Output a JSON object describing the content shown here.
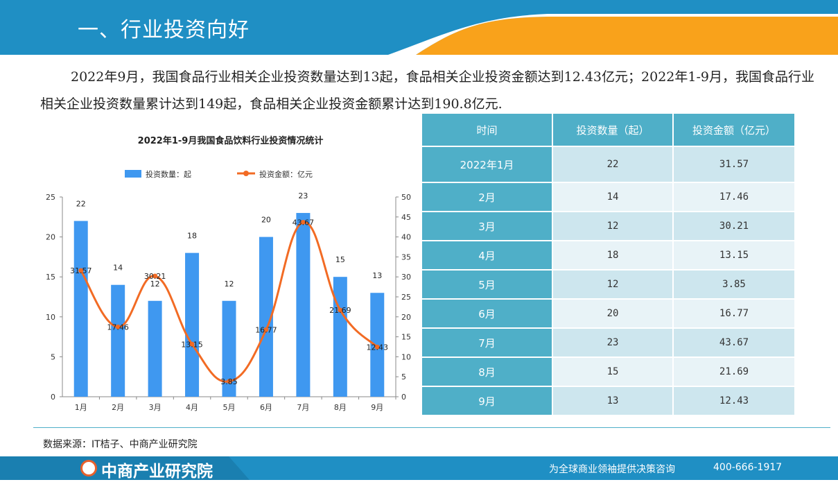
{
  "header": {
    "title": "一、行业投资向好"
  },
  "intro": "2022年9月，我国食品行业相关企业投资数量达到13起，食品相关企业投资金额达到12.43亿元；2022年1-9月，我国食品行业相关企业投资数量累计达到149起，食品相关企业投资金额累计达到190.8亿元.",
  "colors": {
    "header_blue": "#1F8FC4",
    "accent_orange": "#F9A21B",
    "bar_blue": "#3F98F0",
    "line_orange": "#F26B24",
    "table_blue": "#4FAFC8"
  },
  "chart_data": {
    "type": "bar+line",
    "title": "2022年1-9月我国食品饮料行业投资情况统计",
    "categories": [
      "1月",
      "2月",
      "3月",
      "4月",
      "5月",
      "6月",
      "7月",
      "8月",
      "9月"
    ],
    "series": [
      {
        "name": "投资数量：起",
        "type": "bar",
        "axis": "left",
        "values": [
          22,
          14,
          12,
          18,
          12,
          20,
          23,
          15,
          13
        ]
      },
      {
        "name": "投资金额：亿元",
        "type": "line",
        "axis": "right",
        "values": [
          31.57,
          17.46,
          30.21,
          13.15,
          3.85,
          16.77,
          43.67,
          21.69,
          12.43
        ]
      }
    ],
    "y_left": {
      "min": 0,
      "max": 25,
      "ticks": [
        0,
        5,
        10,
        15,
        20,
        25
      ]
    },
    "y_right": {
      "min": 0,
      "max": 50,
      "ticks": [
        0,
        5,
        10,
        15,
        20,
        25,
        30,
        35,
        40,
        45,
        50
      ]
    },
    "legend_position": "top",
    "grid": false
  },
  "table": {
    "headers": [
      "时间",
      "投资数量（起）",
      "投资金额（亿元）"
    ],
    "rows": [
      [
        "2022年1月",
        "22",
        "31.57"
      ],
      [
        "2月",
        "14",
        "17.46"
      ],
      [
        "3月",
        "12",
        "30.21"
      ],
      [
        "4月",
        "18",
        "13.15"
      ],
      [
        "5月",
        "12",
        "3.85"
      ],
      [
        "6月",
        "20",
        "16.77"
      ],
      [
        "7月",
        "23",
        "43.67"
      ],
      [
        "8月",
        "15",
        "21.69"
      ],
      [
        "9月",
        "13",
        "12.43"
      ]
    ]
  },
  "source": "数据来源：IT桔子、中商产业研究院",
  "footer": {
    "logo": "中商产业研究院",
    "slogan": "为全球商业领袖提供决策咨询",
    "phone": "400-666-1917"
  }
}
